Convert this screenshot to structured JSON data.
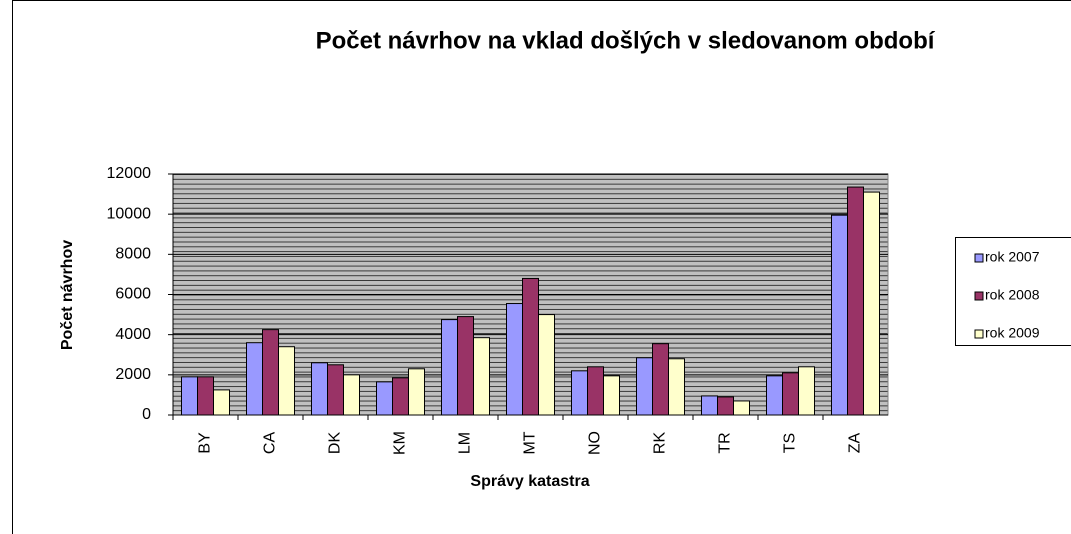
{
  "chart_data": {
    "type": "bar",
    "title": "Počet návrhov na vklad došlých v sledovanom období",
    "x_label": "Správy katastra",
    "y_label": "Počet návrhov",
    "categories": [
      "BY",
      "CA",
      "DK",
      "KM",
      "LM",
      "MT",
      "NO",
      "RK",
      "TR",
      "TS",
      "ZA"
    ],
    "series": [
      {
        "name": "rok 2007",
        "color": "#9999ff",
        "values": [
          1900,
          3600,
          2600,
          1650,
          4750,
          5550,
          2200,
          2850,
          950,
          1950,
          9950
        ]
      },
      {
        "name": "rok 2008",
        "color": "#993366",
        "values": [
          1900,
          4250,
          2500,
          1850,
          4900,
          6800,
          2400,
          3550,
          900,
          2100,
          11350
        ]
      },
      {
        "name": "rok 2009",
        "color": "#ffffcc",
        "values": [
          1250,
          3400,
          2000,
          2300,
          3850,
          5000,
          1950,
          2800,
          700,
          2400,
          11100
        ]
      }
    ],
    "ylim": [
      0,
      12000
    ],
    "yticks": [
      0,
      2000,
      4000,
      6000,
      8000,
      10000,
      12000
    ],
    "grid": true,
    "legend": "right"
  }
}
